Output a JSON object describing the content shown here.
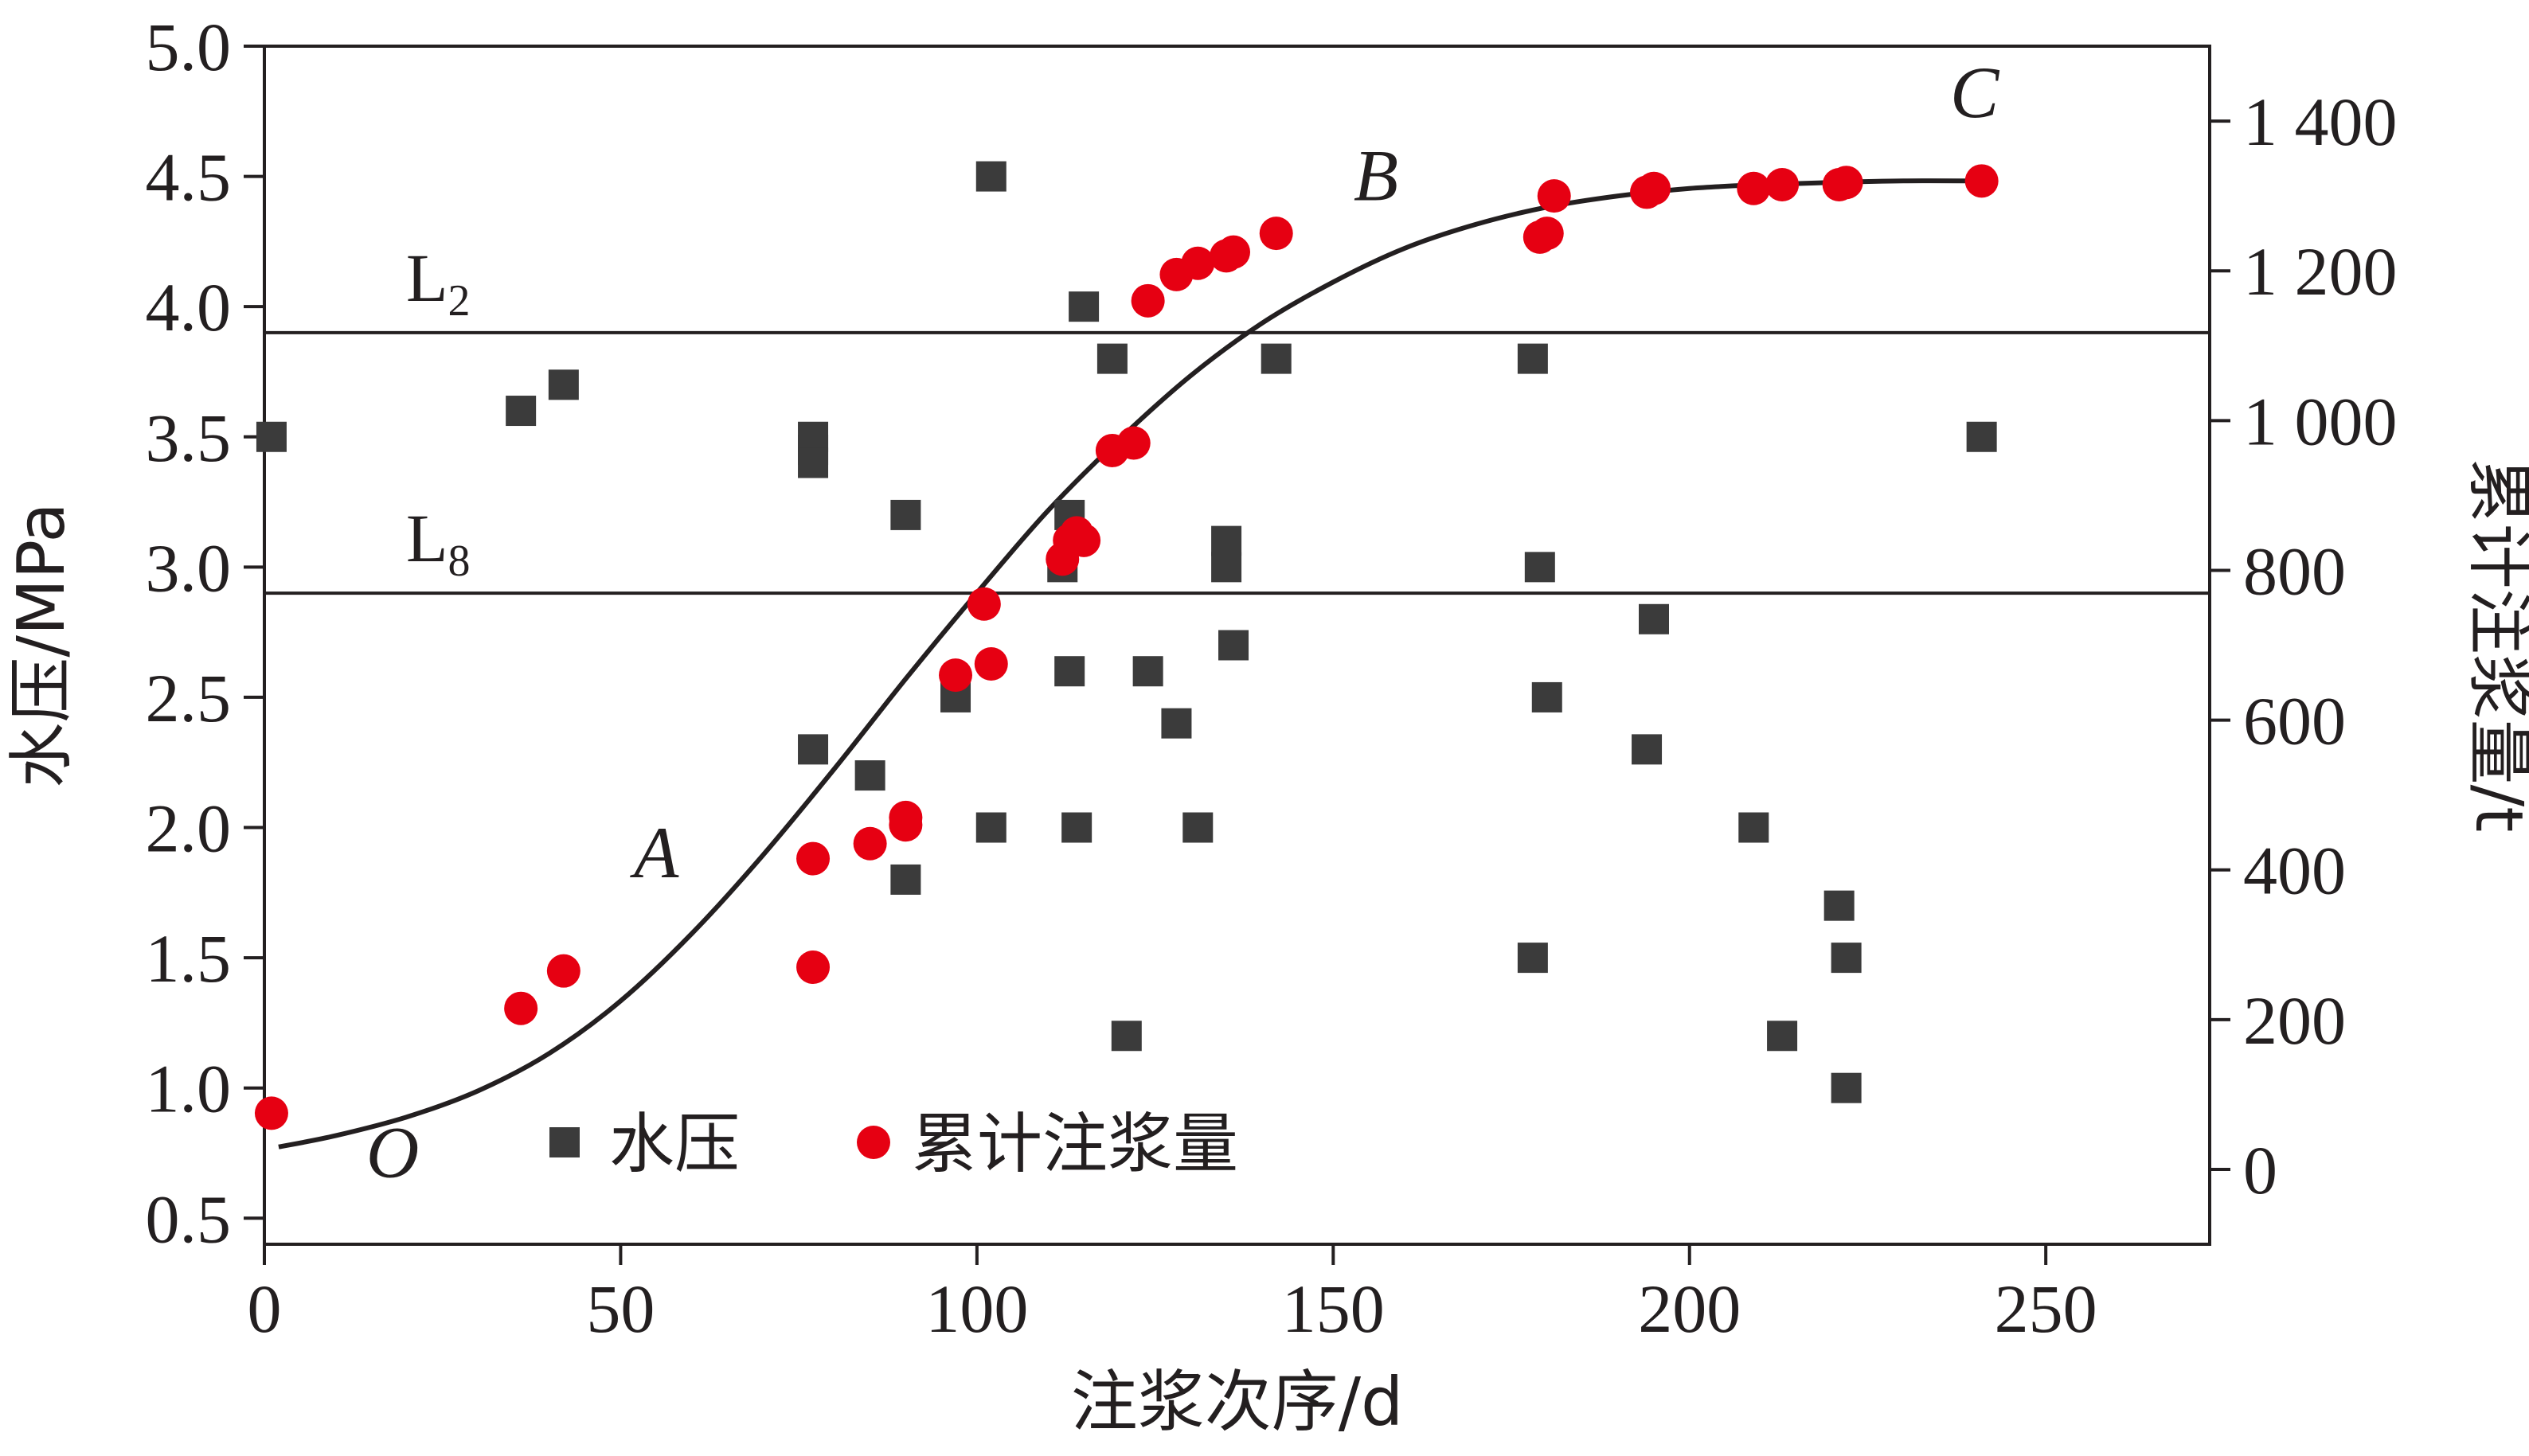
{
  "chart_data": {
    "type": "scatter",
    "xlabel": "注浆次序/d",
    "ylabel_left": "水压/MPa",
    "ylabel_right": "累计注浆量/t",
    "xlim": [
      0,
      273
    ],
    "x_ticks": [
      0,
      50,
      100,
      150,
      200,
      250
    ],
    "x_tick_labels": [
      "0",
      "50",
      "100",
      "150",
      "200",
      "250"
    ],
    "ylim_left": [
      0.4,
      5.0
    ],
    "y_left_ticks": [
      0.5,
      1.0,
      1.5,
      2.0,
      2.5,
      3.0,
      3.5,
      4.0,
      4.5,
      5.0
    ],
    "y_left_tick_labels": [
      "0.5",
      "1.0",
      "1.5",
      "2.0",
      "2.5",
      "3.0",
      "3.5",
      "4.0",
      "4.5",
      "5.0"
    ],
    "ylim_right": [
      -100,
      1500
    ],
    "y_right_ticks": [
      0,
      200,
      400,
      600,
      800,
      1000,
      1200,
      1400
    ],
    "y_right_tick_labels": [
      "0",
      "200",
      "400",
      "600",
      "800",
      "1 000",
      "1 200",
      "1 400"
    ],
    "grid": false,
    "legend": {
      "placement": "bottom-center",
      "entries": [
        "水压",
        "累计注浆量"
      ]
    },
    "colors": {
      "water_pressure": "#3b3b3b",
      "grouting": "#e60012",
      "curve": "#231f20",
      "axis": "#231f20"
    },
    "series": [
      {
        "name": "水压",
        "axis": "left",
        "marker": "square",
        "points": [
          [
            1,
            3.5
          ],
          [
            36,
            3.6
          ],
          [
            42,
            3.7
          ],
          [
            77,
            3.5
          ],
          [
            77,
            3.45
          ],
          [
            77,
            3.4
          ],
          [
            77,
            2.3
          ],
          [
            85,
            2.2
          ],
          [
            90,
            3.2
          ],
          [
            90,
            1.8
          ],
          [
            97,
            2.5
          ],
          [
            102,
            4.5
          ],
          [
            102,
            2.0
          ],
          [
            112,
            3.0
          ],
          [
            113,
            3.2
          ],
          [
            113,
            2.6
          ],
          [
            114,
            2.0
          ],
          [
            115,
            4.0
          ],
          [
            119,
            3.8
          ],
          [
            121,
            1.2
          ],
          [
            124,
            2.6
          ],
          [
            128,
            2.4
          ],
          [
            131,
            2.0
          ],
          [
            135,
            3.1
          ],
          [
            135,
            3.0
          ],
          [
            136,
            2.7
          ],
          [
            142,
            3.8
          ],
          [
            178,
            3.8
          ],
          [
            178,
            1.5
          ],
          [
            179,
            3.0
          ],
          [
            180,
            2.5
          ],
          [
            194,
            2.3
          ],
          [
            195,
            2.8
          ],
          [
            209,
            2.0
          ],
          [
            213,
            1.2
          ],
          [
            221,
            1.7
          ],
          [
            222,
            1.5
          ],
          [
            222,
            1.0
          ],
          [
            241,
            3.5
          ]
        ]
      },
      {
        "name": "累计注浆量",
        "axis": "right",
        "marker": "circle",
        "points": [
          [
            1,
            75
          ],
          [
            36,
            215
          ],
          [
            42,
            265
          ],
          [
            77,
            270
          ],
          [
            77,
            415
          ],
          [
            85,
            435
          ],
          [
            90,
            460
          ],
          [
            90,
            470
          ],
          [
            97,
            660
          ],
          [
            101,
            755
          ],
          [
            102,
            675
          ],
          [
            112,
            815
          ],
          [
            113,
            840
          ],
          [
            114,
            850
          ],
          [
            115,
            840
          ],
          [
            119,
            960
          ],
          [
            122,
            970
          ],
          [
            124,
            1160
          ],
          [
            128,
            1195
          ],
          [
            131,
            1210
          ],
          [
            135,
            1220
          ],
          [
            136,
            1225
          ],
          [
            142,
            1250
          ],
          [
            179,
            1245
          ],
          [
            180,
            1250
          ],
          [
            181,
            1300
          ],
          [
            194,
            1305
          ],
          [
            195,
            1310
          ],
          [
            209,
            1310
          ],
          [
            213,
            1315
          ],
          [
            221,
            1315
          ],
          [
            222,
            1318
          ],
          [
            241,
            1320
          ]
        ]
      }
    ],
    "fit_curve": {
      "axis": "right",
      "points": [
        [
          2,
          30
        ],
        [
          10,
          45
        ],
        [
          20,
          70
        ],
        [
          30,
          105
        ],
        [
          40,
          155
        ],
        [
          50,
          225
        ],
        [
          60,
          315
        ],
        [
          70,
          420
        ],
        [
          80,
          535
        ],
        [
          90,
          655
        ],
        [
          100,
          770
        ],
        [
          110,
          880
        ],
        [
          120,
          975
        ],
        [
          130,
          1060
        ],
        [
          140,
          1130
        ],
        [
          150,
          1185
        ],
        [
          160,
          1230
        ],
        [
          170,
          1262
        ],
        [
          180,
          1285
        ],
        [
          190,
          1300
        ],
        [
          200,
          1310
        ],
        [
          210,
          1315
        ],
        [
          220,
          1318
        ],
        [
          230,
          1320
        ],
        [
          240,
          1320
        ]
      ]
    },
    "reference_lines": [
      {
        "label_main": "L",
        "label_sub": "2",
        "axis": "left",
        "value": 3.9
      },
      {
        "label_main": "L",
        "label_sub": "8",
        "axis": "left",
        "value": 2.9
      }
    ],
    "annotations": [
      {
        "text": "O",
        "x": 18,
        "axis": "left",
        "y": 0.75
      },
      {
        "text": "A",
        "x": 55,
        "axis": "left",
        "y": 1.9
      },
      {
        "text": "B",
        "x": 156,
        "axis": "left",
        "y": 4.5
      },
      {
        "text": "C",
        "x": 240,
        "axis": "left",
        "y": 4.82
      }
    ]
  }
}
